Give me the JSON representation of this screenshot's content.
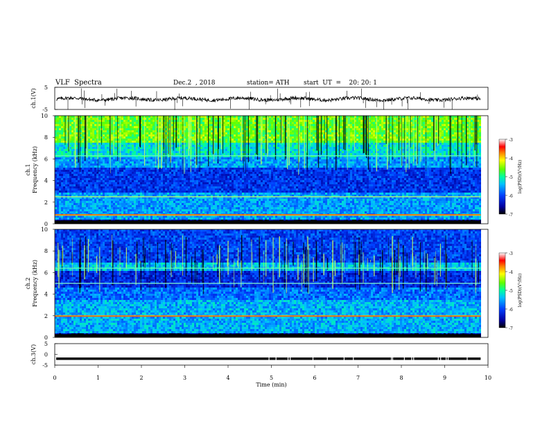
{
  "header": {
    "title": "VLF  Spectra",
    "date": "Dec.2  , 2018",
    "station": "station= ATH",
    "start": "start  UT  =    20: 20: 1"
  },
  "chart_data": [
    {
      "type": "line",
      "panel": "ch1-waveform",
      "ylabel": "ch.1(V)",
      "ylim": [
        -5,
        5
      ],
      "yticks": [
        "5",
        "-5"
      ],
      "xlim": [
        0,
        10
      ],
      "series": [
        {
          "values_note": "",
          "level": -0.3,
          "color": "#000000"
        }
      ]
    },
    {
      "type": "heatmap",
      "panel": "ch1-spectrogram",
      "ylabel": "ch.1\nFrequency  (kHz)",
      "ylim": [
        0,
        10
      ],
      "yticks": [
        "0",
        "2",
        "4",
        "6",
        "8",
        "10"
      ],
      "xlim": [
        0,
        9.83
      ],
      "colorbar": {
        "label": "log(PSD)(V²/Hz)",
        "ticks": [
          "-3",
          "-4",
          "-5",
          "-6",
          "-7"
        ],
        "range": [
          -7,
          -3
        ]
      }
    },
    {
      "type": "heatmap",
      "panel": "ch2-spectrogram",
      "ylabel": "ch.2\nFrequency  (kHz)",
      "ylim": [
        0,
        10
      ],
      "yticks": [
        "0",
        "2",
        "4",
        "6",
        "8",
        "10"
      ],
      "xlim": [
        0,
        9.83
      ],
      "colorbar": {
        "label": "log(PSD)(V²/Hz)",
        "ticks": [
          "-3",
          "-4",
          "-5",
          "-6",
          "-7"
        ],
        "range": [
          -7,
          -3
        ]
      }
    },
    {
      "type": "line",
      "panel": "ch3-waveform",
      "ylabel": "ch.3(V)",
      "ylim": [
        -5,
        5
      ],
      "yticks": [
        "5",
        "0",
        "-5"
      ],
      "xlim": [
        0,
        10
      ],
      "series": [
        {
          "level": -2,
          "color": "#000000"
        }
      ]
    }
  ],
  "xaxis": {
    "label": "Time  (min)",
    "ticks": [
      "0",
      "1",
      "2",
      "3",
      "4",
      "5",
      "6",
      "7",
      "8",
      "9",
      "10"
    ],
    "range": [
      0,
      10
    ]
  }
}
